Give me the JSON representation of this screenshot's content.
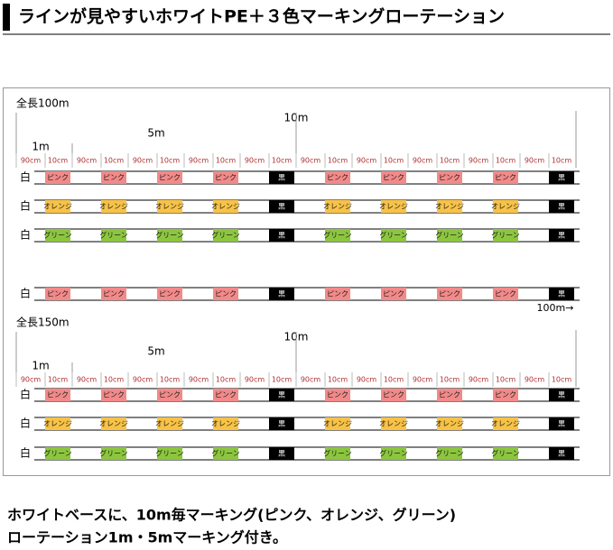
{
  "title": "ラインが見やすいホワイトPE＋３色マーキングローテーション",
  "mark_colors": {
    "ピンク": "#f28a8a",
    "オレンジ": "#f7c246",
    "グリーン": "#8cc63f",
    "黒": "#000000"
  },
  "sections": [
    {
      "total": "全長100m",
      "ten_m": "10m",
      "five_m": "5m",
      "one_m": "1m",
      "scale": [
        "90cm",
        "10cm",
        "90cm",
        "10cm",
        "90cm",
        "10cm",
        "90cm",
        "10cm",
        "90cm",
        "10cm",
        "90cm",
        "10cm",
        "90cm",
        "10cm",
        "90cm",
        "10cm",
        "90cm",
        "10cm",
        "90cm",
        "10cm"
      ],
      "rows": [
        {
          "label": "白",
          "marks": [
            "ピンク",
            "ピンク",
            "ピンク",
            "ピンク",
            "黒",
            "ピンク",
            "ピンク",
            "ピンク",
            "ピンク",
            "黒"
          ]
        },
        {
          "label": "白",
          "marks": [
            "オレンジ",
            "オレンジ",
            "オレンジ",
            "オレンジ",
            "黒",
            "オレンジ",
            "オレンジ",
            "オレンジ",
            "オレンジ",
            "黒"
          ]
        },
        {
          "label": "白",
          "marks": [
            "グリーン",
            "グリーン",
            "グリーン",
            "グリーン",
            "黒",
            "グリーン",
            "グリーン",
            "グリーン",
            "グリーン",
            "黒"
          ]
        }
      ]
    },
    {
      "total": "全長150m",
      "ten_m": "10m",
      "five_m": "5m",
      "one_m": "1m",
      "scale": [
        "90cm",
        "10cm",
        "90cm",
        "10cm",
        "90cm",
        "10cm",
        "90cm",
        "10cm",
        "90cm",
        "10cm",
        "90cm",
        "10cm",
        "90cm",
        "10cm",
        "90cm",
        "10cm",
        "90cm",
        "10cm",
        "90cm",
        "10cm"
      ],
      "rows": [
        {
          "label": "白",
          "marks": [
            "ピンク",
            "ピンク",
            "ピンク",
            "ピンク",
            "黒",
            "ピンク",
            "ピンク",
            "ピンク",
            "ピンク",
            "黒"
          ]
        },
        {
          "label": "白",
          "marks": [
            "オレンジ",
            "オレンジ",
            "オレンジ",
            "オレンジ",
            "黒",
            "オレンジ",
            "オレンジ",
            "オレンジ",
            "オレンジ",
            "黒"
          ]
        },
        {
          "label": "白",
          "marks": [
            "グリーン",
            "グリーン",
            "グリーン",
            "グリーン",
            "黒",
            "グリーン",
            "グリーン",
            "グリーン",
            "グリーン",
            "黒"
          ]
        }
      ]
    }
  ],
  "extra_row": {
    "label": "白",
    "marks": [
      "ピンク",
      "ピンク",
      "ピンク",
      "ピンク",
      "黒",
      "ピンク",
      "ピンク",
      "ピンク",
      "ピンク",
      "黒"
    ]
  },
  "arrow_label": "100m→",
  "footer": [
    "ホワイトベースに、10m毎マーキング(ピンク、オレンジ、グリーン)",
    "ローテーション1m・5mマーキング付き。"
  ]
}
